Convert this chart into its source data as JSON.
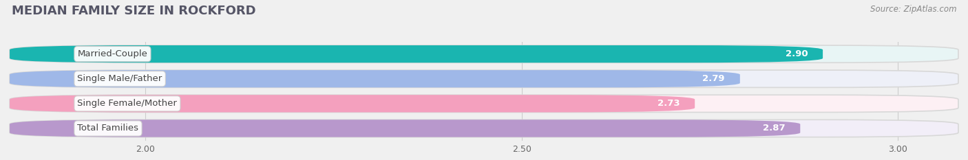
{
  "title": "MEDIAN FAMILY SIZE IN ROCKFORD",
  "source": "Source: ZipAtlas.com",
  "categories": [
    "Married-Couple",
    "Single Male/Father",
    "Single Female/Mother",
    "Total Families"
  ],
  "values": [
    2.9,
    2.79,
    2.73,
    2.87
  ],
  "bar_colors": [
    "#1ab5b0",
    "#9fb8e8",
    "#f4a0be",
    "#b898cc"
  ],
  "bar_bg_colors": [
    "#e8f5f5",
    "#eef0f8",
    "#fdf0f4",
    "#f2eef8"
  ],
  "xlim_left": 1.82,
  "xlim_right": 3.08,
  "xticks": [
    2.0,
    2.5,
    3.0
  ],
  "xtick_labels": [
    "2.00",
    "2.50",
    "3.00"
  ],
  "label_fontsize": 9.5,
  "value_fontsize": 9.5,
  "title_fontsize": 13,
  "source_fontsize": 8.5,
  "bg_color": "#f0f0f0",
  "bar_area_bg": "#ffffff"
}
